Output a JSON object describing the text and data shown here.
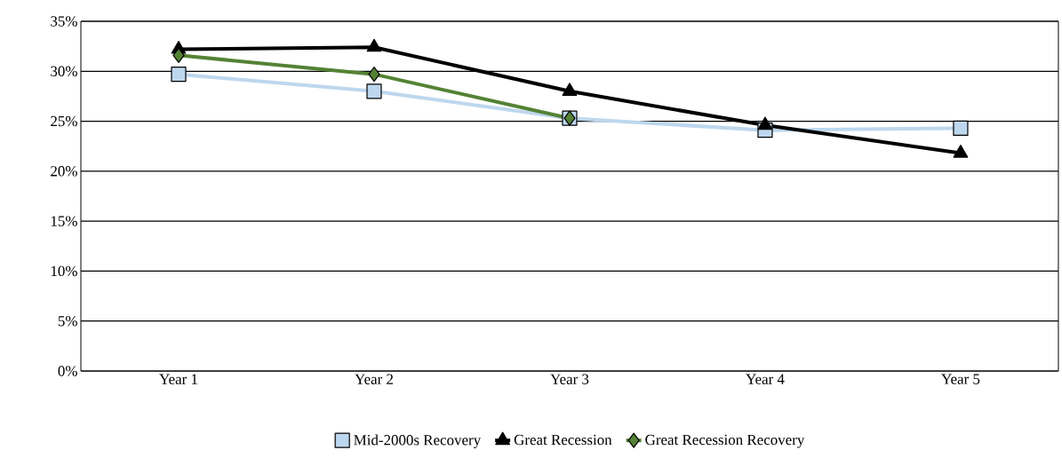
{
  "chart_data": {
    "type": "line",
    "categories": [
      "Year 1",
      "Year 2",
      "Year 3",
      "Year 4",
      "Year 5"
    ],
    "series": [
      {
        "name": "Mid-2000s Recovery",
        "color": "#bdd7ee",
        "marker": "square",
        "values": [
          29.7,
          28.0,
          25.3,
          24.1,
          24.3
        ]
      },
      {
        "name": "Great Recession",
        "color": "#000000",
        "marker": "triangle",
        "values": [
          32.2,
          32.4,
          28.0,
          24.6,
          21.8
        ]
      },
      {
        "name": "Great Recession Recovery",
        "color": "#548235",
        "marker": "diamond",
        "values": [
          31.6,
          29.7,
          25.3,
          null,
          null
        ]
      }
    ],
    "ylim": [
      0,
      35
    ],
    "yticks": [
      {
        "value": 0,
        "label": "0%"
      },
      {
        "value": 5,
        "label": "5%"
      },
      {
        "value": 10,
        "label": "10%"
      },
      {
        "value": 15,
        "label": "15%"
      },
      {
        "value": 20,
        "label": "20%"
      },
      {
        "value": 25,
        "label": "25%"
      },
      {
        "value": 30,
        "label": "30%"
      },
      {
        "value": 35,
        "label": "35%"
      }
    ],
    "grid": "y",
    "legend": "bottom"
  }
}
